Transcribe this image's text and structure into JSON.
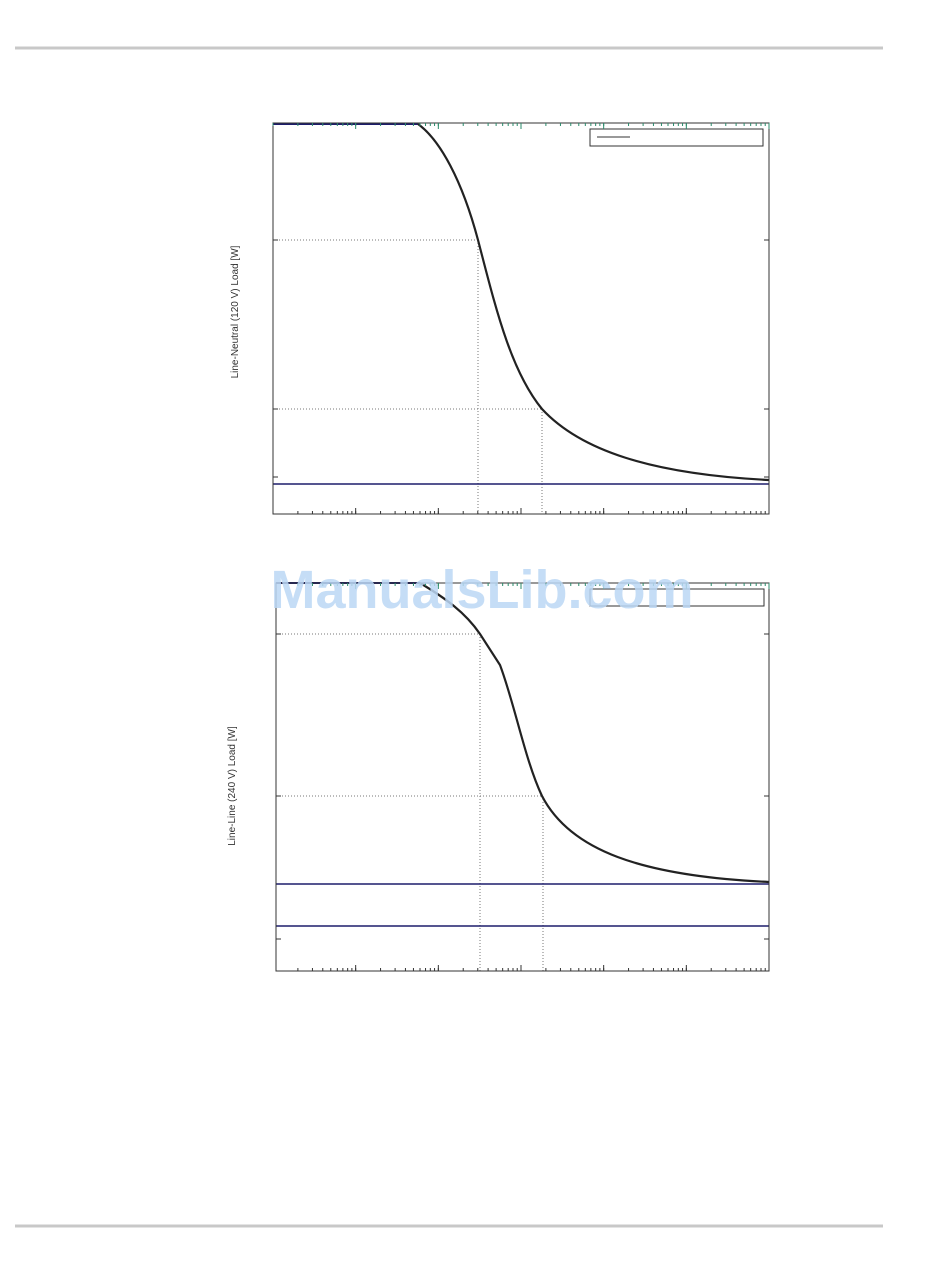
{
  "page": {
    "chart1": {
      "y_label": "Line-Neutral (120 V) Load [W]"
    },
    "chart2": {
      "y_label": "Line-Line (240 V) Load [W]"
    },
    "watermark": "ManualsLib.com"
  }
}
